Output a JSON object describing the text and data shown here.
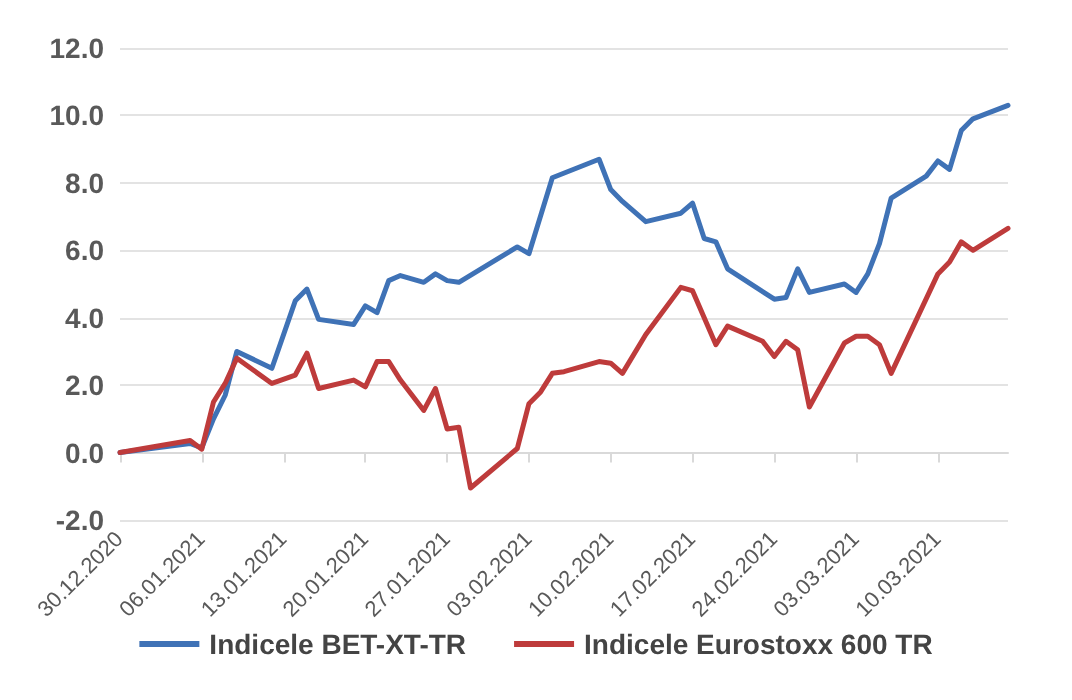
{
  "chart_data": {
    "type": "line",
    "xlim": [
      "2020-12-30",
      "2021-03-16"
    ],
    "xticks": [
      {
        "value": "2020-12-30",
        "label": "30.12.2020"
      },
      {
        "value": "2021-01-06",
        "label": "06.01.2021"
      },
      {
        "value": "2021-01-13",
        "label": "13.01.2021"
      },
      {
        "value": "2021-01-20",
        "label": "20.01.2021"
      },
      {
        "value": "2021-01-27",
        "label": "27.01.2021"
      },
      {
        "value": "2021-02-03",
        "label": "03.02.2021"
      },
      {
        "value": "2021-02-10",
        "label": "10.02.2021"
      },
      {
        "value": "2021-02-17",
        "label": "17.02.2021"
      },
      {
        "value": "2021-02-24",
        "label": "24.02.2021"
      },
      {
        "value": "2021-03-03",
        "label": "03.03.2021"
      },
      {
        "value": "2021-03-10",
        "label": "10.03.2021"
      }
    ],
    "ylim": [
      -2,
      12
    ],
    "yticks": [
      {
        "value": -2,
        "label": "-2.0"
      },
      {
        "value": 0,
        "label": "0.0"
      },
      {
        "value": 2,
        "label": "2.0"
      },
      {
        "value": 4,
        "label": "4.0"
      },
      {
        "value": 6,
        "label": "6.0"
      },
      {
        "value": 8,
        "label": "8.0"
      },
      {
        "value": 10,
        "label": "10.0"
      },
      {
        "value": 12,
        "label": "12.0"
      }
    ],
    "grid": "y",
    "legend": "bottom",
    "marker": "none",
    "line_style": "solid",
    "series": [
      {
        "name": "Indicele BET-XT-TR",
        "color": "#3f72b6",
        "x": [
          "2020-12-30",
          "2021-01-05",
          "2021-01-06",
          "2021-01-07",
          "2021-01-08",
          "2021-01-09",
          "2021-01-12",
          "2021-01-14",
          "2021-01-15",
          "2021-01-16",
          "2021-01-19",
          "2021-01-20",
          "2021-01-21",
          "2021-01-22",
          "2021-01-23",
          "2021-01-25",
          "2021-01-26",
          "2021-01-27",
          "2021-01-28",
          "2021-02-02",
          "2021-02-03",
          "2021-02-05",
          "2021-02-09",
          "2021-02-10",
          "2021-02-11",
          "2021-02-13",
          "2021-02-16",
          "2021-02-17",
          "2021-02-18",
          "2021-02-19",
          "2021-02-20",
          "2021-02-24",
          "2021-02-25",
          "2021-02-26",
          "2021-02-27",
          "2021-03-02",
          "2021-03-03",
          "2021-03-04",
          "2021-03-05",
          "2021-03-06",
          "2021-03-09",
          "2021-03-10",
          "2021-03-11",
          "2021-03-12",
          "2021-03-13",
          "2021-03-16"
        ],
        "values": [
          0,
          0.27,
          0.14,
          1.0,
          1.7,
          3.0,
          2.5,
          4.5,
          4.85,
          3.95,
          3.8,
          4.35,
          4.15,
          5.1,
          5.25,
          5.05,
          5.3,
          5.1,
          5.05,
          6.1,
          5.9,
          8.15,
          8.7,
          7.8,
          7.45,
          6.85,
          7.1,
          7.4,
          6.35,
          6.25,
          5.45,
          4.55,
          4.6,
          5.45,
          4.75,
          5.0,
          4.75,
          5.3,
          6.2,
          7.55,
          8.2,
          8.65,
          8.4,
          9.55,
          9.9,
          10.3
        ]
      },
      {
        "name": "Indicele Eurostoxx 600 TR",
        "color": "#be3b3b",
        "x": [
          "2020-12-30",
          "2021-01-05",
          "2021-01-06",
          "2021-01-07",
          "2021-01-08",
          "2021-01-09",
          "2021-01-12",
          "2021-01-14",
          "2021-01-15",
          "2021-01-16",
          "2021-01-19",
          "2021-01-20",
          "2021-01-21",
          "2021-01-22",
          "2021-01-23",
          "2021-01-25",
          "2021-01-26",
          "2021-01-27",
          "2021-01-28",
          "2021-01-29",
          "2021-02-02",
          "2021-02-03",
          "2021-02-04",
          "2021-02-05",
          "2021-02-06",
          "2021-02-09",
          "2021-02-10",
          "2021-02-11",
          "2021-02-13",
          "2021-02-16",
          "2021-02-17",
          "2021-02-19",
          "2021-02-20",
          "2021-02-23",
          "2021-02-24",
          "2021-02-25",
          "2021-02-26",
          "2021-02-27",
          "2021-03-02",
          "2021-03-03",
          "2021-03-04",
          "2021-03-05",
          "2021-03-06",
          "2021-03-10",
          "2021-03-11",
          "2021-03-12",
          "2021-03-13",
          "2021-03-16"
        ],
        "values": [
          0,
          0.36,
          0.1,
          1.5,
          2.05,
          2.8,
          2.05,
          2.3,
          2.95,
          1.9,
          2.15,
          1.95,
          2.7,
          2.7,
          2.15,
          1.25,
          1.9,
          0.7,
          0.75,
          -1.05,
          0.12,
          1.45,
          1.8,
          2.35,
          2.4,
          2.7,
          2.65,
          2.35,
          3.5,
          4.9,
          4.8,
          3.2,
          3.75,
          3.3,
          2.85,
          3.3,
          3.05,
          1.35,
          3.25,
          3.45,
          3.45,
          3.2,
          2.35,
          5.3,
          5.65,
          6.25,
          6.0,
          6.65
        ]
      }
    ]
  }
}
